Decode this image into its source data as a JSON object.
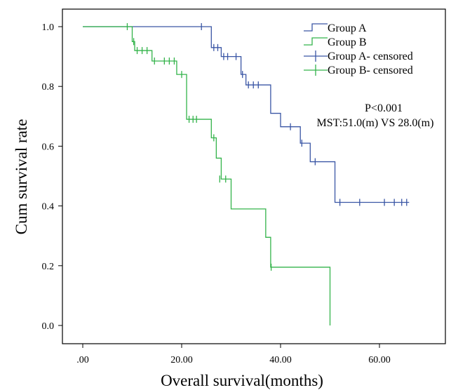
{
  "chart_data": {
    "type": "line",
    "subtype": "kaplan-meier",
    "xlabel": "Overall survival(months)",
    "ylabel": "Cum survival rate",
    "xlim": [
      0,
      68
    ],
    "ylim": [
      -0.04,
      1.06
    ],
    "x_ticks": [
      0,
      20,
      40,
      60
    ],
    "x_tick_labels": [
      ".00",
      "20.00",
      "40.00",
      "60.00"
    ],
    "y_ticks": [
      0,
      0.2,
      0.4,
      0.6,
      0.8,
      1.0
    ],
    "y_tick_labels": [
      "0.0",
      "0.2",
      "0.4",
      "0.6",
      "0.8",
      "1.0"
    ],
    "grid": false,
    "legend_position": "top-right",
    "legend": [
      {
        "label": "Group A",
        "color": "#3a56a5",
        "kind": "step"
      },
      {
        "label": "Group B",
        "color": "#33b34a",
        "kind": "step"
      },
      {
        "label": "Group A- censored",
        "color": "#3a56a5",
        "kind": "censor"
      },
      {
        "label": "Group B- censored",
        "color": "#33b34a",
        "kind": "censor"
      }
    ],
    "annotations": [
      "P<0.001",
      "MST:51.0(m) VS 28.0(m)"
    ],
    "series": [
      {
        "name": "Group A",
        "color": "#3a56a5",
        "steps": [
          [
            0,
            1.0
          ],
          [
            26,
            0.93
          ],
          [
            28,
            0.9
          ],
          [
            32,
            0.84
          ],
          [
            33,
            0.805
          ],
          [
            38,
            0.71
          ],
          [
            40,
            0.665
          ],
          [
            44,
            0.61
          ],
          [
            46,
            0.548
          ],
          [
            51,
            0.412
          ],
          [
            66,
            0.412
          ]
        ],
        "censored": [
          [
            24,
            1.0
          ],
          [
            26.5,
            0.93
          ],
          [
            27.3,
            0.93
          ],
          [
            28.5,
            0.9
          ],
          [
            29.3,
            0.9
          ],
          [
            31,
            0.9
          ],
          [
            32.3,
            0.84
          ],
          [
            33.5,
            0.805
          ],
          [
            34.5,
            0.805
          ],
          [
            35.5,
            0.805
          ],
          [
            42,
            0.665
          ],
          [
            44.3,
            0.61
          ],
          [
            47,
            0.548
          ],
          [
            52,
            0.412
          ],
          [
            56,
            0.412
          ],
          [
            61,
            0.412
          ],
          [
            63,
            0.412
          ],
          [
            64.5,
            0.412
          ],
          [
            65.5,
            0.412
          ]
        ]
      },
      {
        "name": "Group B",
        "color": "#33b34a",
        "steps": [
          [
            0,
            1.0
          ],
          [
            10,
            0.95
          ],
          [
            10.5,
            0.92
          ],
          [
            14,
            0.885
          ],
          [
            19,
            0.84
          ],
          [
            21,
            0.69
          ],
          [
            26,
            0.628
          ],
          [
            27,
            0.56
          ],
          [
            28,
            0.49
          ],
          [
            30,
            0.39
          ],
          [
            37,
            0.295
          ],
          [
            38,
            0.195
          ],
          [
            50,
            0.0
          ]
        ],
        "censored": [
          [
            9,
            1.0
          ],
          [
            10.3,
            0.95
          ],
          [
            11,
            0.92
          ],
          [
            12,
            0.92
          ],
          [
            13,
            0.92
          ],
          [
            14.5,
            0.885
          ],
          [
            16.5,
            0.885
          ],
          [
            17.5,
            0.885
          ],
          [
            18.5,
            0.885
          ],
          [
            20,
            0.84
          ],
          [
            21.5,
            0.69
          ],
          [
            22.3,
            0.69
          ],
          [
            23,
            0.69
          ],
          [
            26.5,
            0.628
          ],
          [
            27.7,
            0.49
          ],
          [
            28.9,
            0.49
          ],
          [
            38.1,
            0.195
          ]
        ]
      }
    ]
  }
}
